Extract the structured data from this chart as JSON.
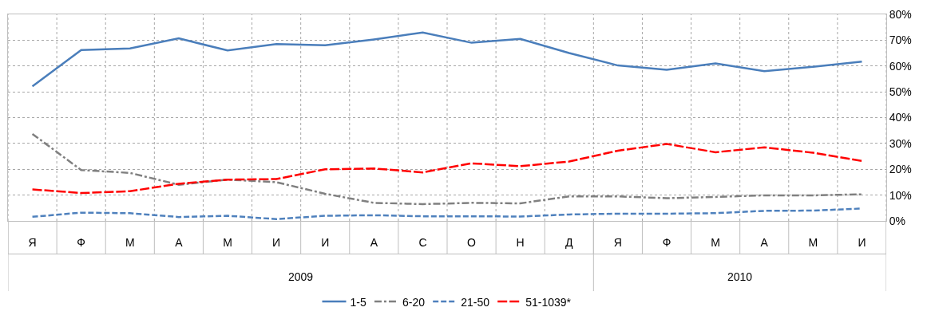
{
  "chart_data": {
    "type": "line",
    "categories": [
      "Я",
      "Ф",
      "М",
      "А",
      "М",
      "И",
      "И",
      "А",
      "С",
      "О",
      "Н",
      "Д",
      "Я",
      "Ф",
      "М",
      "А",
      "М",
      "И"
    ],
    "annotations": [
      "2009",
      "2010"
    ],
    "series": [
      {
        "name": "1-5",
        "color": "#4a7ebb",
        "line_style": "solid",
        "values": [
          52.1,
          66.2,
          66.8,
          70.7,
          66,
          68.5,
          68,
          70.3,
          73,
          69,
          70.5,
          65,
          60.2,
          58.5,
          61,
          58,
          59.7,
          61.7
        ]
      },
      {
        "name": "6-20",
        "color": "#808080",
        "line_style": "dashdot",
        "values": [
          33.7,
          19.7,
          18.6,
          14,
          16,
          15,
          10.5,
          7,
          6.5,
          7,
          6.8,
          9.5,
          9.5,
          8.8,
          9.3,
          9.9,
          9.9,
          10.3
        ]
      },
      {
        "name": "21-50",
        "color": "#4f81bd",
        "line_style": "dashed",
        "values": [
          1.6,
          3.2,
          3,
          1.5,
          2,
          0.7,
          2,
          2.2,
          1.8,
          1.8,
          1.7,
          2.5,
          2.8,
          2.8,
          3,
          3.9,
          4,
          4.8
        ]
      },
      {
        "name": "51-1039*",
        "color": "#ff0000",
        "line_style": "longdash",
        "values": [
          12.2,
          10.8,
          11.5,
          14.4,
          16,
          16.2,
          20,
          20.3,
          18.8,
          22.3,
          21.2,
          23,
          27.2,
          29.8,
          26.6,
          28.5,
          26.4,
          23.2
        ]
      }
    ],
    "ylim": [
      0,
      80
    ],
    "yticks": [
      {
        "value": 0,
        "label": "0%"
      },
      {
        "value": 10,
        "label": "10%"
      },
      {
        "value": 20,
        "label": "20%"
      },
      {
        "value": 30,
        "label": "30%"
      },
      {
        "value": 40,
        "label": "40%"
      },
      {
        "value": 50,
        "label": "50%"
      },
      {
        "value": 60,
        "label": "60%"
      },
      {
        "value": 70,
        "label": "70%"
      },
      {
        "value": 80,
        "label": "80%"
      }
    ],
    "grid": true,
    "legend": "bottom",
    "marker": "none"
  }
}
